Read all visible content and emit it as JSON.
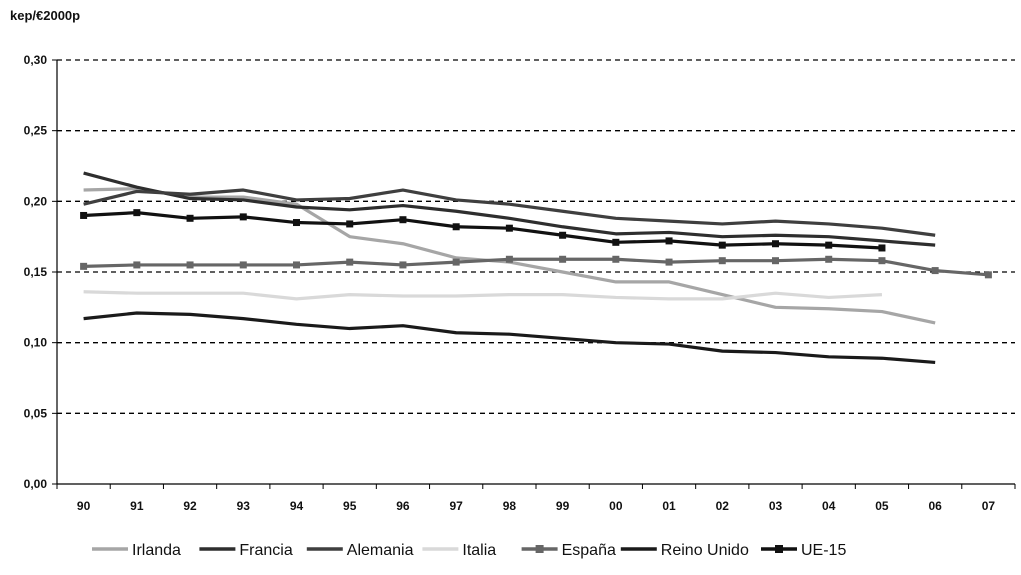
{
  "chart_data": {
    "type": "line",
    "ylabel": "kep/€2000p",
    "xlabel": "",
    "title": "",
    "categories": [
      "90",
      "91",
      "92",
      "93",
      "94",
      "95",
      "96",
      "97",
      "98",
      "99",
      "00",
      "01",
      "02",
      "03",
      "04",
      "05",
      "06",
      "07"
    ],
    "yticks": [
      "0,00",
      "0,05",
      "0,10",
      "0,15",
      "0,20",
      "0,25",
      "0,30"
    ],
    "ylim": [
      0,
      0.3
    ],
    "grid": "dashed horizontal",
    "legend_position": "bottom",
    "series": [
      {
        "name": "Irlanda",
        "color": "#a6a6a6",
        "marker": "none",
        "values": [
          0.208,
          0.209,
          0.203,
          0.203,
          0.198,
          0.175,
          0.17,
          0.16,
          0.157,
          0.15,
          0.143,
          0.143,
          0.134,
          0.125,
          0.124,
          0.122,
          0.114,
          null
        ]
      },
      {
        "name": "Francia",
        "color": "#2e2e2e",
        "marker": "none",
        "values": [
          0.22,
          0.21,
          0.202,
          0.201,
          0.196,
          0.194,
          0.197,
          0.193,
          0.188,
          0.182,
          0.177,
          0.178,
          0.175,
          0.176,
          0.175,
          0.172,
          0.169,
          null
        ]
      },
      {
        "name": "Alemania",
        "color": "#3f3f3f",
        "marker": "none",
        "values": [
          0.198,
          0.207,
          0.205,
          0.208,
          0.201,
          0.202,
          0.208,
          0.201,
          0.198,
          0.193,
          0.188,
          0.186,
          0.184,
          0.186,
          0.184,
          0.181,
          0.176,
          null
        ]
      },
      {
        "name": "Italia",
        "color": "#d9d9d9",
        "marker": "none",
        "values": [
          0.136,
          0.135,
          0.135,
          0.135,
          0.131,
          0.134,
          0.133,
          0.133,
          0.134,
          0.134,
          0.132,
          0.131,
          0.131,
          0.135,
          0.132,
          0.134,
          null,
          null
        ]
      },
      {
        "name": "España",
        "color": "#666666",
        "marker": "square",
        "values": [
          0.154,
          0.155,
          0.155,
          0.155,
          0.155,
          0.157,
          0.155,
          0.157,
          0.159,
          0.159,
          0.159,
          0.157,
          0.158,
          0.158,
          0.159,
          0.158,
          0.151,
          0.148
        ]
      },
      {
        "name": "Reino Unido",
        "color": "#1a1a1a",
        "marker": "none",
        "values": [
          0.117,
          0.121,
          0.12,
          0.117,
          0.113,
          0.11,
          0.112,
          0.107,
          0.106,
          0.103,
          0.1,
          0.099,
          0.094,
          0.093,
          0.09,
          0.089,
          0.086,
          null
        ]
      },
      {
        "name": "UE-15",
        "color": "#111111",
        "marker": "square",
        "values": [
          0.19,
          0.192,
          0.188,
          0.189,
          0.185,
          0.184,
          0.187,
          0.182,
          0.181,
          0.176,
          0.171,
          0.172,
          0.169,
          0.17,
          0.169,
          0.167,
          null,
          null
        ]
      }
    ]
  }
}
